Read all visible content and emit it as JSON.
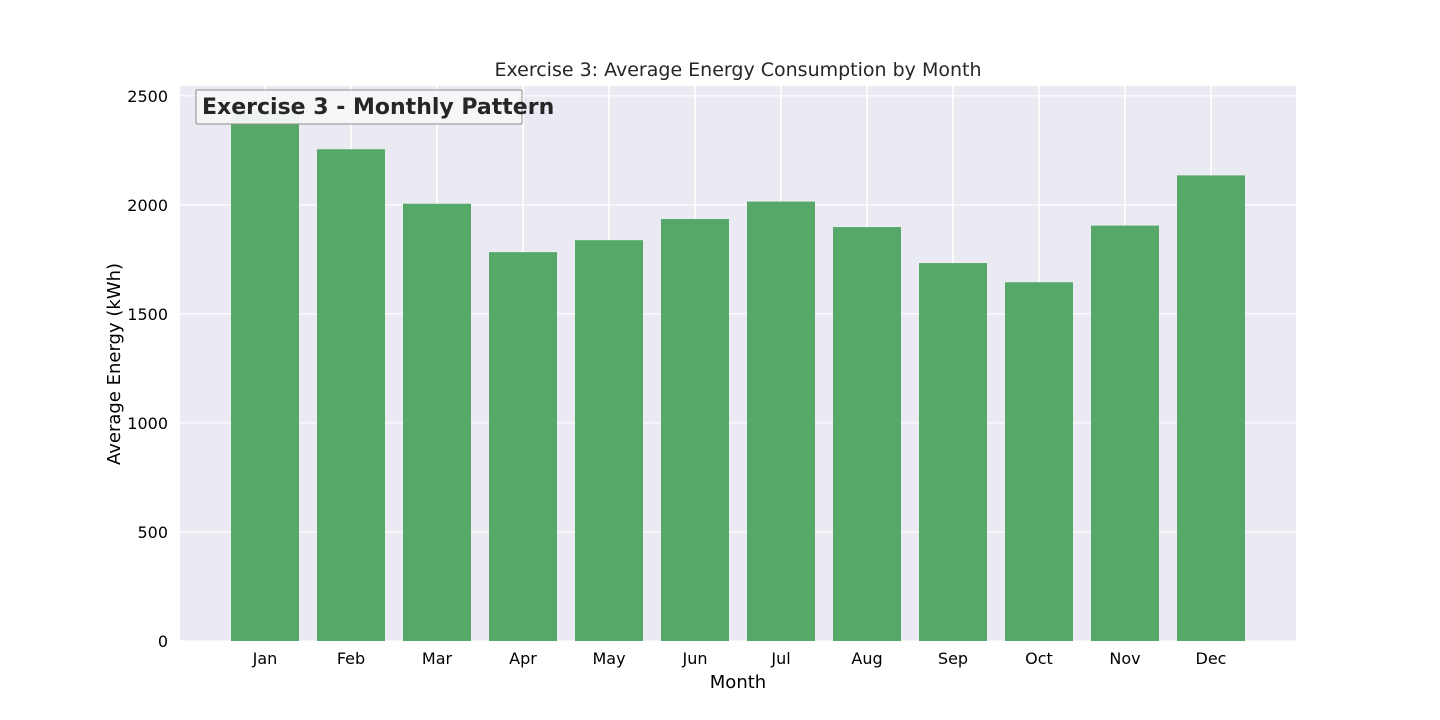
{
  "chart_data": {
    "type": "bar",
    "title": "Exercise 3: Average Energy Consumption by Month",
    "xlabel": "Month",
    "ylabel": "Average Energy (kWh)",
    "categories": [
      "Jan",
      "Feb",
      "Mar",
      "Apr",
      "May",
      "Jun",
      "Jul",
      "Aug",
      "Sep",
      "Oct",
      "Nov",
      "Dec"
    ],
    "values": [
      2430,
      2255,
      2005,
      1783,
      1838,
      1935,
      2015,
      1898,
      1733,
      1645,
      1905,
      2135
    ],
    "ylim": [
      0,
      2545
    ],
    "yticks": [
      0,
      500,
      1000,
      1500,
      2000,
      2500
    ],
    "grid": true,
    "annotation": "Exercise 3 - Monthly Pattern",
    "colors": {
      "bar": "#55a868",
      "plot_background": "#eaeaf2",
      "grid": "#ffffff",
      "annotation_box": "#f7f7f9",
      "annotation_border": "#8c8c8c"
    }
  }
}
